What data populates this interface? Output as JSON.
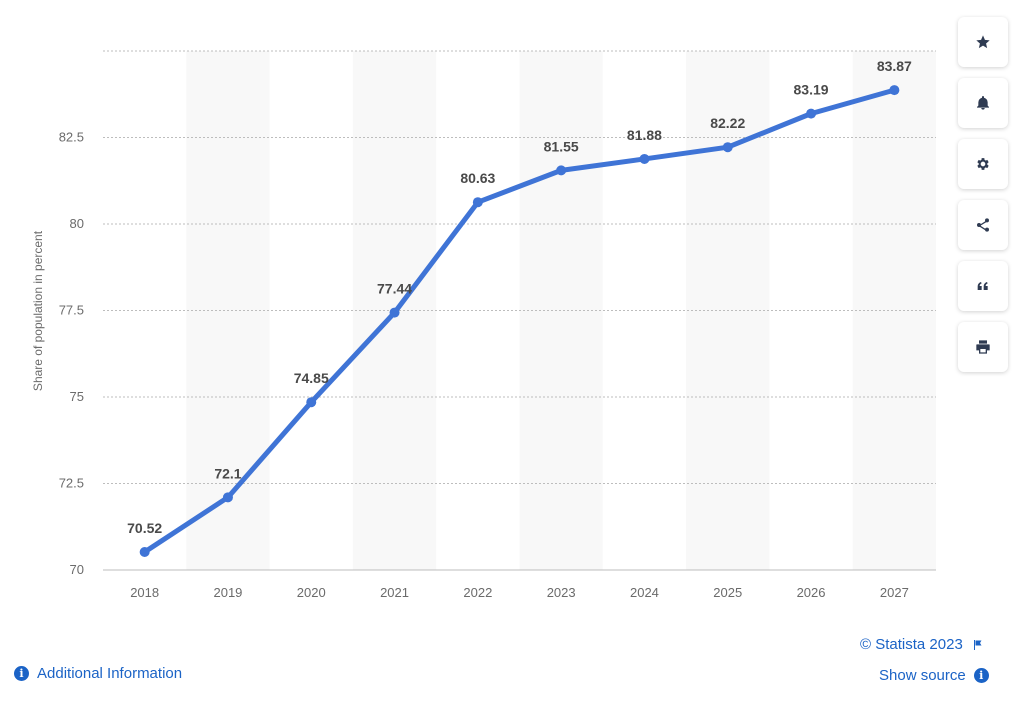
{
  "chart_data": {
    "type": "line",
    "title": "",
    "xlabel": "",
    "ylabel": "Share of population in percent",
    "categories": [
      "2018",
      "2019",
      "2020",
      "2021",
      "2022",
      "2023",
      "2024",
      "2025",
      "2026",
      "2027"
    ],
    "series": [
      {
        "values": [
          70.52,
          72.1,
          74.85,
          77.44,
          80.63,
          81.55,
          81.88,
          82.22,
          83.19,
          83.87
        ]
      }
    ],
    "data_labels": [
      "70.52",
      "72.1",
      "74.85",
      "77.44",
      "80.63",
      "81.55",
      "81.88",
      "82.22",
      "83.19",
      "83.87"
    ],
    "yticks": [
      "70",
      "72.5",
      "75",
      "77.5",
      "80",
      "82.5"
    ],
    "ylim": [
      70,
      85
    ],
    "grid": true,
    "line_color": "#3f74d6",
    "legend": "none"
  },
  "toolbar": {
    "buttons": [
      {
        "name": "star-icon"
      },
      {
        "name": "bell-icon"
      },
      {
        "name": "gear-icon"
      },
      {
        "name": "share-icon"
      },
      {
        "name": "quote-icon"
      },
      {
        "name": "print-icon"
      }
    ]
  },
  "footer": {
    "copyright": "© Statista 2023",
    "show_source": "Show source",
    "additional_info": "Additional Information",
    "link_color": "#1b63c6"
  }
}
